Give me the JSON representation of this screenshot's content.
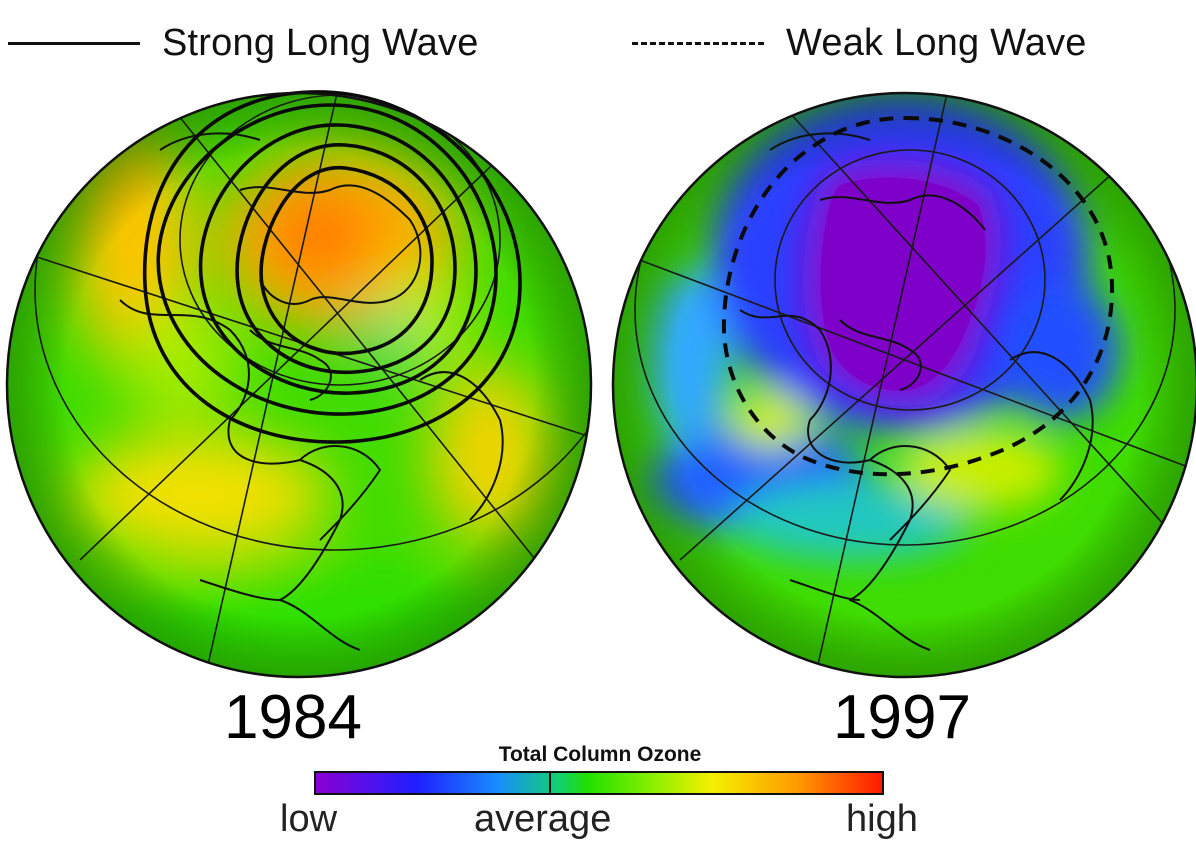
{
  "legend": {
    "strong": "Strong Long Wave",
    "weak": "Weak Long Wave"
  },
  "maps": [
    {
      "year": "1984",
      "contour_style": "solid",
      "dominant_level": "high"
    },
    {
      "year": "1997",
      "contour_style": "dashed",
      "dominant_level": "low"
    }
  ],
  "colorbar": {
    "title": "Total Column Ozone",
    "low": "low",
    "average": "average",
    "high": "high",
    "colors": [
      "#8a00d4",
      "#1e20ff",
      "#1a8cff",
      "#21e000",
      "#f4f000",
      "#ff9a00",
      "#ff1a00"
    ]
  }
}
